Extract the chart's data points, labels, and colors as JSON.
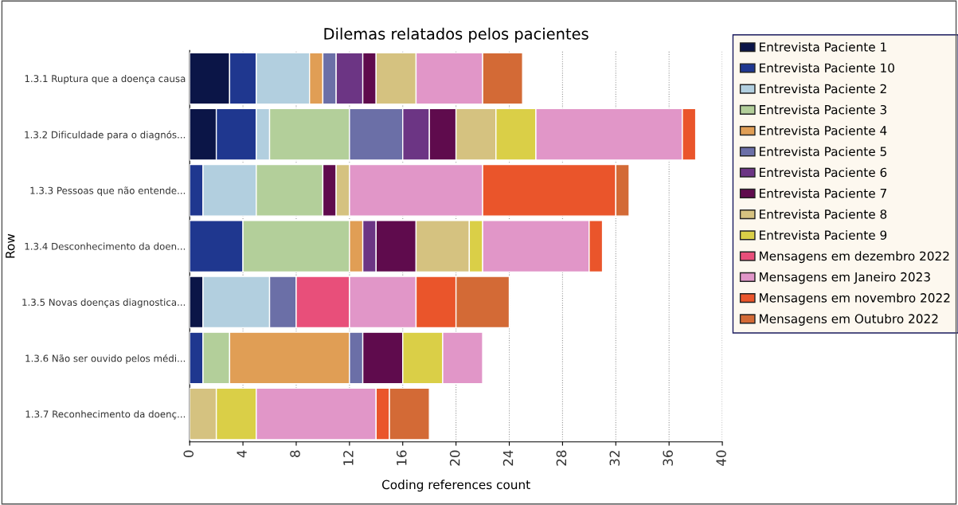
{
  "chart_data": {
    "type": "bar",
    "orientation": "horizontal",
    "stacked": true,
    "title": "Dilemas relatados pelos pacientes",
    "xlabel": "Coding references count",
    "ylabel": "Row",
    "categories": [
      "1.3.1 Ruptura que a doença causa",
      "1.3.2 Dificuldade para o diagnós...",
      "1.3.3 Pessoas que não entende...",
      "1.3.4 Desconhecimento da doen...",
      "1.3.5 Novas doenças diagnostica...",
      "1.3.6 Não ser ouvido pelos médi...",
      "1.3.7 Reconhecimento da doenç..."
    ],
    "series": [
      {
        "name": "Entrevista Paciente 1",
        "color": "#0b1547",
        "values": [
          3,
          2,
          null,
          null,
          1,
          null,
          null
        ]
      },
      {
        "name": "Entrevista Paciente 10",
        "color": "#1f378f",
        "values": [
          2,
          3,
          1,
          4,
          null,
          1,
          null
        ]
      },
      {
        "name": "Entrevista Paciente 2",
        "color": "#b2cfdf",
        "values": [
          4,
          1,
          4,
          null,
          5,
          null,
          null
        ]
      },
      {
        "name": "Entrevista Paciente 3",
        "color": "#b3cf9a",
        "values": [
          null,
          6,
          5,
          8,
          null,
          2,
          null
        ]
      },
      {
        "name": "Entrevista Paciente 4",
        "color": "#e09e55",
        "values": [
          1,
          null,
          null,
          1,
          null,
          9,
          null
        ]
      },
      {
        "name": "Entrevista Paciente 5",
        "color": "#6b6fa7",
        "values": [
          1,
          4,
          null,
          null,
          2,
          1,
          null
        ]
      },
      {
        "name": "Entrevista Paciente 6",
        "color": "#6c3584",
        "values": [
          2,
          2,
          null,
          1,
          null,
          null,
          null
        ]
      },
      {
        "name": "Entrevista Paciente 7",
        "color": "#5f0b4d",
        "values": [
          1,
          2,
          1,
          3,
          null,
          3,
          null
        ]
      },
      {
        "name": "Entrevista Paciente 8",
        "color": "#d5c280",
        "values": [
          3,
          3,
          1,
          4,
          null,
          null,
          2
        ]
      },
      {
        "name": "Entrevista Paciente 9",
        "color": "#dacf47",
        "values": [
          null,
          3,
          null,
          1,
          null,
          3,
          3
        ]
      },
      {
        "name": "Mensagens em dezembro 2022",
        "color": "#e84f7a",
        "values": [
          null,
          null,
          null,
          null,
          4,
          null,
          null
        ]
      },
      {
        "name": "Mensagens em Janeiro 2023",
        "color": "#e196c8",
        "values": [
          5,
          11,
          10,
          8,
          5,
          3,
          9
        ]
      },
      {
        "name": "Mensagens em novembro 2022",
        "color": "#ea552b",
        "values": [
          null,
          1,
          10,
          1,
          3,
          null,
          1
        ]
      },
      {
        "name": "Mensagens em Outubro 2022",
        "color": "#d36a36",
        "values": [
          3,
          null,
          1,
          null,
          4,
          null,
          3
        ]
      }
    ],
    "xlim": [
      0,
      40
    ],
    "xticks": [
      0,
      4,
      8,
      12,
      16,
      20,
      24,
      28,
      32,
      36,
      40
    ],
    "grid": "x",
    "legend": "right"
  }
}
